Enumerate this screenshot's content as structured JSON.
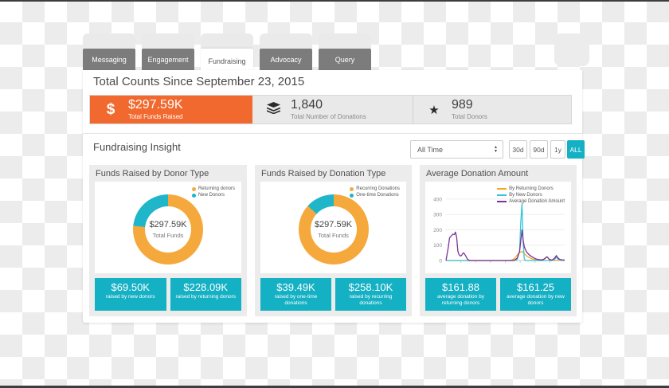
{
  "colors": {
    "accent_teal": "#14B0C4",
    "stat_orange": "#F1692E",
    "donut_orange": "#F5A93C",
    "donut_teal": "#1FB6C9",
    "line_returning": "#F5A623",
    "line_new": "#35C4D7",
    "line_average": "#7B3294",
    "tab_gray": "#7C7C7C"
  },
  "icons": {
    "dollar": "$",
    "star": "★",
    "stepper_up": "▲",
    "stepper_down": "▼"
  },
  "tabs": [
    {
      "label": "Messaging",
      "active": false
    },
    {
      "label": "Engagement",
      "active": false
    },
    {
      "label": "Fundraising",
      "active": true
    },
    {
      "label": "Advocacy",
      "active": false
    },
    {
      "label": "Query",
      "active": false
    }
  ],
  "summary": {
    "title": "Total Counts Since September 23, 2015",
    "stats": [
      {
        "value": "$297.59K",
        "label": "Total Funds Raised",
        "icon": "dollar-icon"
      },
      {
        "value": "1,840",
        "label": "Total Number of Donations",
        "icon": "layers-icon"
      },
      {
        "value": "989",
        "label": "Total Donors",
        "icon": "star-icon"
      }
    ]
  },
  "insight": {
    "title": "Fundraising Insight",
    "time_select": {
      "value": "All Time"
    },
    "range_buttons": [
      {
        "label": "30d",
        "active": false
      },
      {
        "label": "90d",
        "active": false
      },
      {
        "label": "1y",
        "active": false
      },
      {
        "label": "ALL",
        "active": true
      }
    ]
  },
  "chart_data": [
    {
      "type": "pie",
      "title": "Funds Raised by Donor Type",
      "center_value": "$297.59K",
      "center_label": "Total Funds",
      "slices": [
        {
          "label": "Returning donors",
          "value": 228.09,
          "color": "#F5A93C"
        },
        {
          "label": "New Donors",
          "value": 69.5,
          "color": "#1FB6C9"
        }
      ],
      "buttons": [
        {
          "value": "$69.50K",
          "label": "raised by new donors"
        },
        {
          "value": "$228.09K",
          "label": "raised by returning donors"
        }
      ]
    },
    {
      "type": "pie",
      "title": "Funds Raised by Donation Type",
      "center_value": "$297.59K",
      "center_label": "Total Funds",
      "slices": [
        {
          "label": "Recurring Donations",
          "value": 258.1,
          "color": "#F5A93C"
        },
        {
          "label": "One-time Donations",
          "value": 39.49,
          "color": "#1FB6C9"
        }
      ],
      "buttons": [
        {
          "value": "$39.49K",
          "label": "raised by one-time donations"
        },
        {
          "value": "$258.10K",
          "label": "raised by recurring donations"
        }
      ]
    },
    {
      "type": "line",
      "title": "Average Donation Amount",
      "ylim": [
        0,
        430
      ],
      "yticks": [
        0,
        100,
        200,
        300,
        400
      ],
      "grid": true,
      "legend_position": "top-right",
      "series": [
        {
          "name": "By Returning Donors",
          "color": "#F5A623",
          "points": [
            [
              0,
              0
            ],
            [
              20,
              0
            ],
            [
              40,
              0
            ],
            [
              54,
              0
            ],
            [
              56,
              5
            ],
            [
              58,
              15
            ],
            [
              60,
              35
            ],
            [
              62,
              52
            ],
            [
              64,
              60
            ],
            [
              66,
              45
            ],
            [
              68,
              30
            ],
            [
              70,
              20
            ],
            [
              72,
              12
            ],
            [
              74,
              8
            ],
            [
              77,
              4
            ],
            [
              80,
              2
            ],
            [
              83,
              10
            ],
            [
              85,
              22
            ],
            [
              87,
              10
            ],
            [
              89,
              3
            ],
            [
              92,
              2
            ],
            [
              95,
              2
            ],
            [
              100,
              1
            ]
          ]
        },
        {
          "name": "By New Donors",
          "color": "#35C4D7",
          "points": [
            [
              0,
              0
            ],
            [
              30,
              0
            ],
            [
              58,
              0
            ],
            [
              60,
              8
            ],
            [
              62,
              60
            ],
            [
              63,
              250
            ],
            [
              64,
              368
            ],
            [
              65,
              120
            ],
            [
              66,
              10
            ],
            [
              67,
              0
            ],
            [
              75,
              0
            ],
            [
              85,
              0
            ],
            [
              89,
              0
            ],
            [
              91,
              4
            ],
            [
              93,
              20
            ],
            [
              95,
              6
            ],
            [
              97,
              2
            ],
            [
              100,
              1
            ]
          ]
        },
        {
          "name": "Average Donation Amount",
          "color": "#7B3294",
          "points": [
            [
              0,
              0
            ],
            [
              2,
              90
            ],
            [
              3,
              148
            ],
            [
              5,
              165
            ],
            [
              6,
              172
            ],
            [
              7,
              168
            ],
            [
              8,
              185
            ],
            [
              9,
              150
            ],
            [
              10,
              60
            ],
            [
              11,
              38
            ],
            [
              12,
              30
            ],
            [
              13,
              32
            ],
            [
              14,
              45
            ],
            [
              15,
              50
            ],
            [
              16,
              38
            ],
            [
              17,
              25
            ],
            [
              18,
              10
            ],
            [
              19,
              4
            ],
            [
              20,
              0
            ],
            [
              30,
              0
            ],
            [
              40,
              0
            ],
            [
              50,
              0
            ],
            [
              56,
              0
            ],
            [
              58,
              4
            ],
            [
              60,
              15
            ],
            [
              62,
              60
            ],
            [
              64,
              198
            ],
            [
              65,
              130
            ],
            [
              66,
              90
            ],
            [
              67,
              70
            ],
            [
              68,
              55
            ],
            [
              70,
              38
            ],
            [
              72,
              26
            ],
            [
              74,
              17
            ],
            [
              76,
              10
            ],
            [
              78,
              6
            ],
            [
              80,
              4
            ],
            [
              82,
              6
            ],
            [
              84,
              18
            ],
            [
              85,
              25
            ],
            [
              86,
              18
            ],
            [
              87,
              8
            ],
            [
              88,
              4
            ],
            [
              89,
              3
            ],
            [
              90,
              6
            ],
            [
              91,
              12
            ],
            [
              92,
              22
            ],
            [
              93,
              32
            ],
            [
              94,
              20
            ],
            [
              95,
              12
            ],
            [
              96,
              7
            ],
            [
              97,
              5
            ],
            [
              98,
              4
            ],
            [
              100,
              3
            ]
          ]
        }
      ],
      "buttons": [
        {
          "value": "$161.88",
          "label": "average donation by returning donors"
        },
        {
          "value": "$161.25",
          "label": "average donation by new donors"
        }
      ]
    }
  ]
}
